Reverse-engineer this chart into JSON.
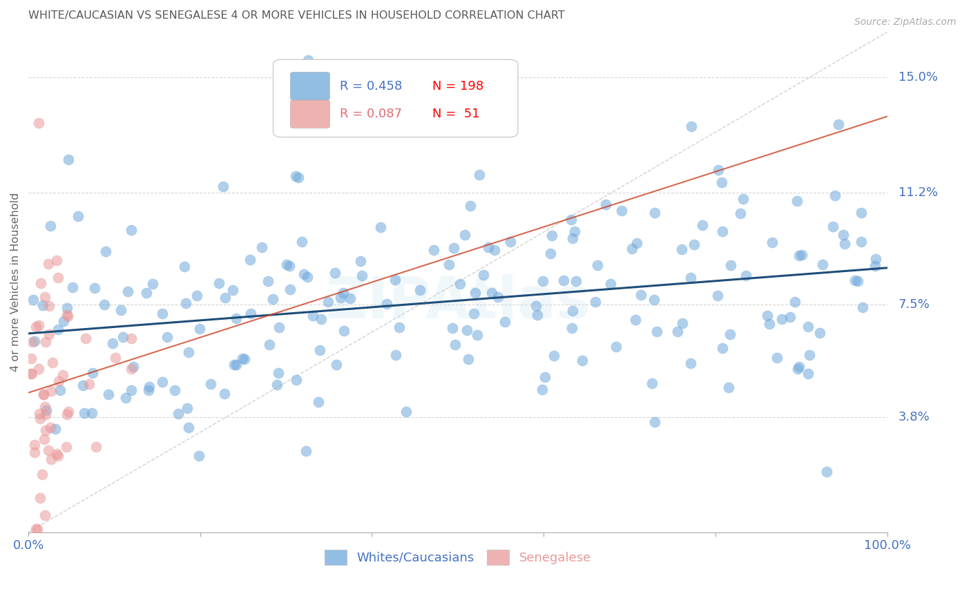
{
  "title": "WHITE/CAUCASIAN VS SENEGALESE 4 OR MORE VEHICLES IN HOUSEHOLD CORRELATION CHART",
  "source": "Source: ZipAtlas.com",
  "ylabel": "4 or more Vehicles in Household",
  "y_tick_labels": [
    "3.8%",
    "7.5%",
    "11.2%",
    "15.0%"
  ],
  "y_tick_values": [
    0.038,
    0.075,
    0.112,
    0.15
  ],
  "legend1_R": "0.458",
  "legend1_N": "198",
  "legend2_R": "0.087",
  "legend2_N": "51",
  "blue_color": "#6fa8dc",
  "pink_color": "#ea9999",
  "blue_line_color": "#1f4e79",
  "pink_line_color": "#cc4125",
  "axis_label_color": "#4472c4",
  "title_color": "#595959",
  "legend_R1_color": "#4472c4",
  "legend_R2_color": "#e06c75",
  "legend_N_color": "#ff0000",
  "background_color": "#ffffff",
  "grid_color": "#cccccc",
  "dashed_line_color": "#cccccc",
  "xlim": [
    0.0,
    1.0
  ],
  "ylim": [
    0.0,
    0.165
  ],
  "blue_R": 0.458,
  "pink_R": 0.087,
  "blue_N": 198,
  "pink_N": 51,
  "marker_size": 120,
  "marker_alpha": 0.55,
  "figsize": [
    14.06,
    8.92
  ],
  "dpi": 100
}
